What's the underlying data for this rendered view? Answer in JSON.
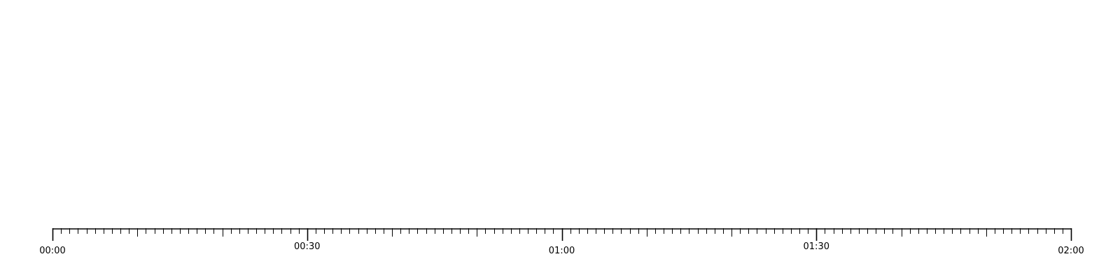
{
  "timeline": {
    "range_minutes": [
      0,
      120
    ],
    "major_tick_interval_minutes": 10,
    "minor_tick_interval_minutes": 1,
    "labels": [
      {
        "minute": 0,
        "text": "00:00",
        "row": "low"
      },
      {
        "minute": 30,
        "text": "00:30",
        "row": "high"
      },
      {
        "minute": 60,
        "text": "01:00",
        "row": "low"
      },
      {
        "minute": 90,
        "text": "01:30",
        "row": "high"
      },
      {
        "minute": 120,
        "text": "02:00",
        "row": "low"
      }
    ],
    "colors": {
      "line": "#000000",
      "text": "#000000",
      "background": "#ffffff"
    }
  }
}
